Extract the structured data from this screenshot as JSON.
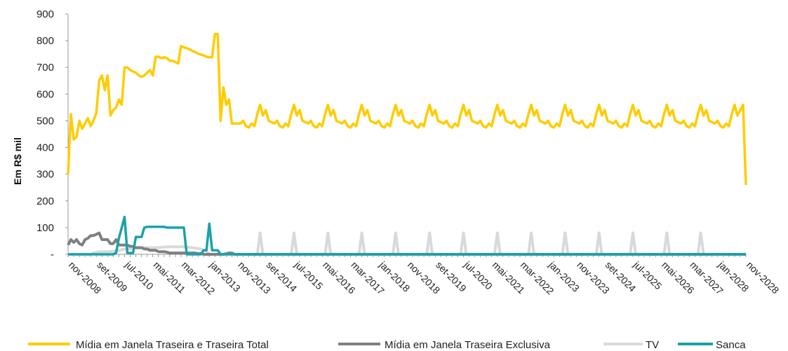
{
  "chart_data": {
    "type": "line",
    "ylabel": "Em R$ mil",
    "xlabel": "",
    "ylim": [
      0,
      900
    ],
    "y_ticks": [
      {
        "v": 0,
        "label": "-"
      },
      {
        "v": 100,
        "label": "100"
      },
      {
        "v": 200,
        "label": "200"
      },
      {
        "v": 300,
        "label": "300"
      },
      {
        "v": 400,
        "label": "400"
      },
      {
        "v": 500,
        "label": "500"
      },
      {
        "v": 600,
        "label": "600"
      },
      {
        "v": 700,
        "label": "700"
      },
      {
        "v": 800,
        "label": "800"
      },
      {
        "v": 900,
        "label": "900"
      }
    ],
    "x_range": [
      "2008-11",
      "2028-11"
    ],
    "x_tick_labels": [
      "nov-2008",
      "set-2009",
      "jul-2010",
      "mai-2011",
      "mar-2012",
      "jan-2013",
      "nov-2013",
      "set-2014",
      "jul-2015",
      "mai-2016",
      "mar-2017",
      "jan-2018",
      "nov-2018",
      "set-2019",
      "jul-2020",
      "mai-2021",
      "mar-2022",
      "jan-2023",
      "nov-2023",
      "set-2024",
      "jul-2025",
      "mai-2026",
      "mar-2027",
      "jan-2028",
      "nov-2028"
    ],
    "legend_position": "bottom",
    "grid": false,
    "series": [
      {
        "name": "Mídia em Janela Traseira e Traseira Total",
        "color": "#FFCC00",
        "points": [
          [
            "2008-11",
            300
          ],
          [
            "2008-12",
            525
          ],
          [
            "2009-01",
            430
          ],
          [
            "2009-02",
            440
          ],
          [
            "2009-03",
            500
          ],
          [
            "2009-04",
            470
          ],
          [
            "2009-05",
            490
          ],
          [
            "2009-06",
            510
          ],
          [
            "2009-07",
            480
          ],
          [
            "2009-08",
            500
          ],
          [
            "2009-09",
            530
          ],
          [
            "2009-10",
            650
          ],
          [
            "2009-11",
            670
          ],
          [
            "2009-12",
            615
          ],
          [
            "2010-01",
            670
          ],
          [
            "2010-02",
            520
          ],
          [
            "2010-03",
            540
          ],
          [
            "2010-04",
            550
          ],
          [
            "2010-05",
            580
          ],
          [
            "2010-06",
            560
          ],
          [
            "2010-07",
            700
          ],
          [
            "2010-08",
            700
          ],
          [
            "2010-09",
            690
          ],
          [
            "2010-10",
            685
          ],
          [
            "2010-11",
            680
          ],
          [
            "2010-12",
            670
          ],
          [
            "2011-01",
            665
          ],
          [
            "2011-02",
            670
          ],
          [
            "2011-03",
            680
          ],
          [
            "2011-04",
            690
          ],
          [
            "2011-05",
            670
          ],
          [
            "2011-06",
            740
          ],
          [
            "2011-07",
            740
          ],
          [
            "2011-08",
            735
          ],
          [
            "2011-09",
            738
          ],
          [
            "2011-10",
            735
          ],
          [
            "2011-11",
            725
          ],
          [
            "2011-12",
            725
          ],
          [
            "2012-01",
            720
          ],
          [
            "2012-02",
            715
          ],
          [
            "2012-03",
            780
          ],
          [
            "2012-04",
            775
          ],
          [
            "2012-05",
            772
          ],
          [
            "2012-06",
            768
          ],
          [
            "2012-07",
            762
          ],
          [
            "2012-08",
            758
          ],
          [
            "2012-09",
            752
          ],
          [
            "2012-10",
            748
          ],
          [
            "2012-11",
            745
          ],
          [
            "2012-12",
            740
          ],
          [
            "2013-01",
            738
          ],
          [
            "2013-02",
            738
          ],
          [
            "2013-03",
            825
          ],
          [
            "2013-04",
            825
          ],
          [
            "2013-05",
            500
          ],
          [
            "2013-06",
            625
          ],
          [
            "2013-07",
            560
          ],
          [
            "2013-08",
            580
          ],
          [
            "2013-09",
            490
          ],
          [
            "2013-10",
            490
          ],
          [
            "2013-11",
            490
          ]
        ],
        "pattern_from": "2013-12",
        "pattern_to": "2028-10",
        "pattern_12m": [
          500,
          480,
          475,
          490,
          480,
          525,
          560,
          520,
          540,
          500,
          495,
          490
        ],
        "end_points": [
          [
            "2028-10",
            560
          ],
          [
            "2028-11",
            260
          ]
        ]
      },
      {
        "name": "Mídia em Janela Traseira Exclusiva",
        "color": "#808080",
        "points": [
          [
            "2008-11",
            35
          ],
          [
            "2008-12",
            55
          ],
          [
            "2009-01",
            45
          ],
          [
            "2009-02",
            55
          ],
          [
            "2009-03",
            40
          ],
          [
            "2009-04",
            35
          ],
          [
            "2009-05",
            55
          ],
          [
            "2009-06",
            60
          ],
          [
            "2009-07",
            70
          ],
          [
            "2009-08",
            70
          ],
          [
            "2009-09",
            75
          ],
          [
            "2009-10",
            80
          ],
          [
            "2009-11",
            55
          ],
          [
            "2009-12",
            55
          ],
          [
            "2010-01",
            55
          ],
          [
            "2010-02",
            40
          ],
          [
            "2010-03",
            40
          ],
          [
            "2010-04",
            55
          ],
          [
            "2010-05",
            35
          ],
          [
            "2010-06",
            35
          ],
          [
            "2010-07",
            35
          ],
          [
            "2010-08",
            35
          ],
          [
            "2010-09",
            30
          ],
          [
            "2010-10",
            30
          ],
          [
            "2010-11",
            25
          ],
          [
            "2010-12",
            25
          ],
          [
            "2011-01",
            25
          ],
          [
            "2011-02",
            20
          ],
          [
            "2011-03",
            20
          ],
          [
            "2011-04",
            15
          ],
          [
            "2011-05",
            15
          ],
          [
            "2011-06",
            15
          ],
          [
            "2011-07",
            10
          ],
          [
            "2011-08",
            10
          ],
          [
            "2011-09",
            10
          ],
          [
            "2011-10",
            8
          ],
          [
            "2011-11",
            5
          ],
          [
            "2011-12",
            5
          ],
          [
            "2012-01",
            5
          ],
          [
            "2012-02",
            5
          ],
          [
            "2012-03",
            5
          ],
          [
            "2012-04",
            5
          ],
          [
            "2012-05",
            5
          ],
          [
            "2012-06",
            5
          ],
          [
            "2012-07",
            5
          ],
          [
            "2012-08",
            5
          ],
          [
            "2012-09",
            3
          ],
          [
            "2012-10",
            3
          ],
          [
            "2012-11",
            0
          ],
          [
            "2012-12",
            0
          ],
          [
            "2013-06",
            0
          ],
          [
            "2013-07",
            2
          ],
          [
            "2013-08",
            5
          ],
          [
            "2013-09",
            5
          ],
          [
            "2013-10",
            0
          ],
          [
            "2013-11",
            0
          ],
          [
            "2028-11",
            0
          ]
        ]
      },
      {
        "name": "TV",
        "color": "#D9D9D9",
        "points": [
          [
            "2008-11",
            0
          ],
          [
            "2009-07",
            0
          ],
          [
            "2009-08",
            5
          ],
          [
            "2009-10",
            10
          ],
          [
            "2010-01",
            10
          ],
          [
            "2010-04",
            12
          ],
          [
            "2010-07",
            20
          ],
          [
            "2010-10",
            22
          ],
          [
            "2011-01",
            25
          ],
          [
            "2011-04",
            25
          ],
          [
            "2011-07",
            25
          ],
          [
            "2011-10",
            28
          ],
          [
            "2012-01",
            28
          ],
          [
            "2012-04",
            28
          ],
          [
            "2012-07",
            25
          ],
          [
            "2012-10",
            20
          ],
          [
            "2012-12",
            12
          ],
          [
            "2013-01",
            0
          ],
          [
            "2013-11",
            0
          ]
        ],
        "spike_months": [
          "2014-07",
          "2015-07",
          "2016-07",
          "2017-07",
          "2018-07",
          "2019-07",
          "2020-07",
          "2021-07",
          "2022-07",
          "2023-07",
          "2024-07",
          "2025-07",
          "2026-07",
          "2027-07"
        ],
        "spike_value": 80
      },
      {
        "name": "Sanca",
        "color": "#1AA3A8",
        "points": [
          [
            "2008-11",
            0
          ],
          [
            "2010-03",
            0
          ],
          [
            "2010-04",
            5
          ],
          [
            "2010-05",
            60
          ],
          [
            "2010-06",
            100
          ],
          [
            "2010-07",
            140
          ],
          [
            "2010-08",
            5
          ],
          [
            "2010-09",
            5
          ],
          [
            "2010-10",
            5
          ],
          [
            "2010-11",
            65
          ],
          [
            "2010-12",
            65
          ],
          [
            "2011-01",
            65
          ],
          [
            "2011-02",
            100
          ],
          [
            "2011-03",
            103
          ],
          [
            "2011-04",
            103
          ],
          [
            "2011-05",
            103
          ],
          [
            "2011-06",
            103
          ],
          [
            "2011-07",
            103
          ],
          [
            "2011-08",
            103
          ],
          [
            "2011-09",
            103
          ],
          [
            "2011-10",
            100
          ],
          [
            "2011-11",
            100
          ],
          [
            "2011-12",
            100
          ],
          [
            "2012-01",
            100
          ],
          [
            "2012-02",
            100
          ],
          [
            "2012-03",
            100
          ],
          [
            "2012-04",
            100
          ],
          [
            "2012-05",
            0
          ],
          [
            "2012-06",
            0
          ],
          [
            "2012-10",
            0
          ],
          [
            "2012-11",
            15
          ],
          [
            "2012-12",
            15
          ],
          [
            "2013-01",
            115
          ],
          [
            "2013-02",
            15
          ],
          [
            "2013-03",
            15
          ],
          [
            "2013-04",
            15
          ],
          [
            "2013-05",
            0
          ],
          [
            "2028-11",
            0
          ]
        ]
      }
    ]
  }
}
